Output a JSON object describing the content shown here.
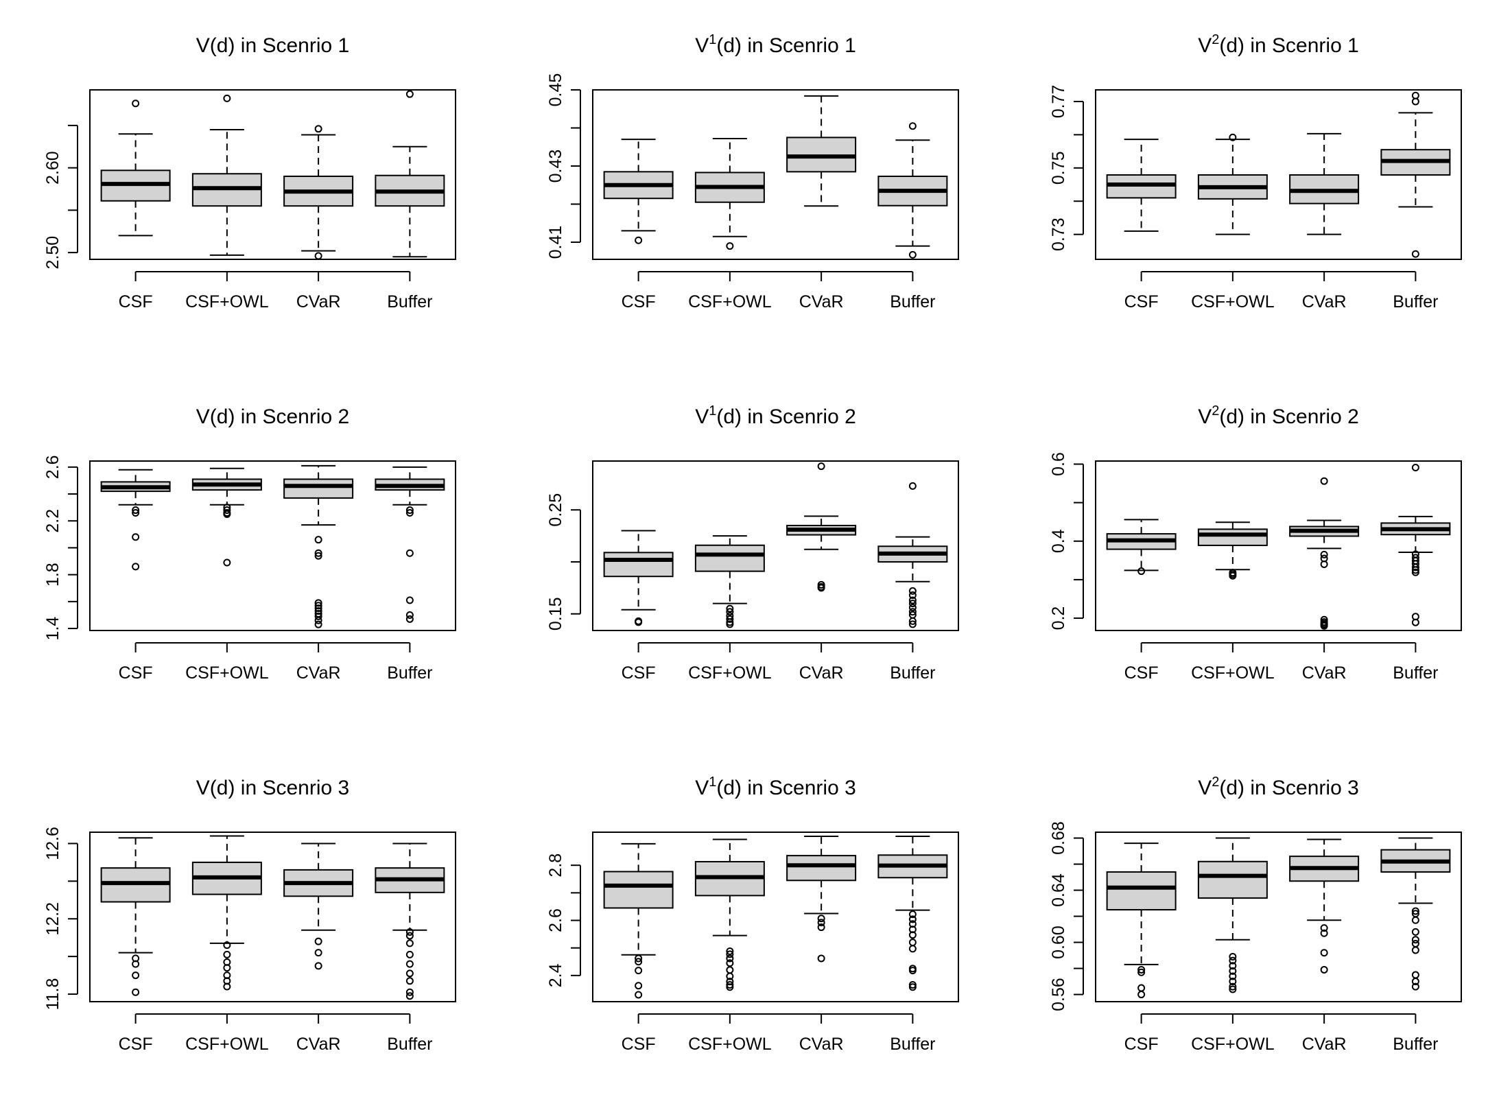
{
  "figure": {
    "name": "boxplot-grid"
  },
  "colors": {
    "box_fill": "#d3d3d3",
    "stroke": "#000000",
    "background": "#ffffff"
  },
  "chart_data": [
    {
      "type": "boxplot",
      "title": "V(d) in Scenrio 1",
      "title_main": "V",
      "title_sup": "",
      "title_rest": "(d) in Scenrio 1",
      "categories": [
        "CSF",
        "CSF+OWL",
        "CVaR",
        "Buffer"
      ],
      "ylim": [
        2.492,
        2.692
      ],
      "yticks": [
        2.5,
        2.6
      ],
      "ytick_labels": [
        "2.50",
        "2.60"
      ],
      "yminor": [
        2.55,
        2.65
      ],
      "boxes": [
        {
          "whisker_low": 2.52,
          "q1": 2.561,
          "median": 2.581,
          "q3": 2.597,
          "whisker_high": 2.64,
          "outliers": [
            2.676
          ]
        },
        {
          "whisker_low": 2.497,
          "q1": 2.555,
          "median": 2.576,
          "q3": 2.593,
          "whisker_high": 2.645,
          "outliers": [
            2.682
          ]
        },
        {
          "whisker_low": 2.502,
          "q1": 2.555,
          "median": 2.572,
          "q3": 2.59,
          "whisker_high": 2.639,
          "outliers": [
            2.646,
            2.496
          ]
        },
        {
          "whisker_low": 2.495,
          "q1": 2.555,
          "median": 2.572,
          "q3": 2.591,
          "whisker_high": 2.625,
          "outliers": [
            2.687
          ]
        }
      ]
    },
    {
      "type": "boxplot",
      "title": "V1(d) in Scenrio 1",
      "title_main": "V",
      "title_sup": "1",
      "title_rest": "(d) in Scenrio 1",
      "categories": [
        "CSF",
        "CSF+OWL",
        "CVaR",
        "Buffer"
      ],
      "ylim": [
        0.4055,
        0.45
      ],
      "yticks": [
        0.41,
        0.43,
        0.45
      ],
      "ytick_labels": [
        "0.41",
        "0.43",
        "0.45"
      ],
      "yminor": [
        0.42,
        0.44
      ],
      "boxes": [
        {
          "whisker_low": 0.413,
          "q1": 0.4215,
          "median": 0.425,
          "q3": 0.4285,
          "whisker_high": 0.437,
          "outliers": [
            0.4105
          ]
        },
        {
          "whisker_low": 0.4115,
          "q1": 0.4205,
          "median": 0.4245,
          "q3": 0.4283,
          "whisker_high": 0.4372,
          "outliers": [
            0.409
          ]
        },
        {
          "whisker_low": 0.4195,
          "q1": 0.4285,
          "median": 0.4325,
          "q3": 0.4375,
          "whisker_high": 0.4484,
          "outliers": []
        },
        {
          "whisker_low": 0.409,
          "q1": 0.4196,
          "median": 0.4235,
          "q3": 0.4273,
          "whisker_high": 0.4368,
          "outliers": [
            0.4405,
            0.4067
          ]
        }
      ]
    },
    {
      "type": "boxplot",
      "title": "V2(d) in Scenrio 1",
      "title_main": "V",
      "title_sup": "2",
      "title_rest": "(d) in Scenrio 1",
      "categories": [
        "CSF",
        "CSF+OWL",
        "CVaR",
        "Buffer"
      ],
      "ylim": [
        0.7225,
        0.7735
      ],
      "yticks": [
        0.73,
        0.75,
        0.77
      ],
      "ytick_labels": [
        "0.73",
        "0.75",
        "0.77"
      ],
      "yminor": [
        0.74,
        0.76
      ],
      "boxes": [
        {
          "whisker_low": 0.731,
          "q1": 0.741,
          "median": 0.745,
          "q3": 0.7479,
          "whisker_high": 0.7586,
          "outliers": []
        },
        {
          "whisker_low": 0.73,
          "q1": 0.7407,
          "median": 0.7442,
          "q3": 0.7479,
          "whisker_high": 0.7586,
          "outliers": [
            0.7592
          ]
        },
        {
          "whisker_low": 0.73,
          "q1": 0.7393,
          "median": 0.7431,
          "q3": 0.7479,
          "whisker_high": 0.7603,
          "outliers": []
        },
        {
          "whisker_low": 0.7383,
          "q1": 0.7479,
          "median": 0.7521,
          "q3": 0.7555,
          "whisker_high": 0.7666,
          "outliers": [
            0.7718,
            0.77,
            0.7241
          ]
        }
      ]
    },
    {
      "type": "boxplot",
      "title": "V(d) in Scenrio 2",
      "title_main": "V",
      "title_sup": "",
      "title_rest": "(d) in Scenrio 2",
      "categories": [
        "CSF",
        "CSF+OWL",
        "CVaR",
        "Buffer"
      ],
      "ylim": [
        1.385,
        2.645
      ],
      "yticks": [
        1.4,
        1.8,
        2.2,
        2.6
      ],
      "ytick_labels": [
        "1.4",
        "1.8",
        "2.2",
        "2.6"
      ],
      "yminor": [
        1.6,
        2.0,
        2.4
      ],
      "boxes": [
        {
          "whisker_low": 2.32,
          "q1": 2.42,
          "median": 2.45,
          "q3": 2.49,
          "whisker_high": 2.58,
          "outliers": [
            2.28,
            2.26,
            2.08,
            1.86
          ]
        },
        {
          "whisker_low": 2.32,
          "q1": 2.43,
          "median": 2.47,
          "q3": 2.51,
          "whisker_high": 2.59,
          "outliers": [
            2.3,
            2.28,
            2.26,
            2.25,
            1.89
          ]
        },
        {
          "whisker_low": 2.17,
          "q1": 2.37,
          "median": 2.46,
          "q3": 2.51,
          "whisker_high": 2.61,
          "outliers": [
            2.06,
            1.96,
            1.94,
            1.59,
            1.57,
            1.55,
            1.53,
            1.51,
            1.49,
            1.46,
            1.43
          ]
        },
        {
          "whisker_low": 2.32,
          "q1": 2.43,
          "median": 2.46,
          "q3": 2.51,
          "whisker_high": 2.6,
          "outliers": [
            2.28,
            2.26,
            1.96,
            1.61,
            1.5,
            1.47
          ]
        }
      ]
    },
    {
      "type": "boxplot",
      "title": "V1(d) in Scenrio 2",
      "title_main": "V",
      "title_sup": "1",
      "title_rest": "(d) in Scenrio 2",
      "categories": [
        "CSF",
        "CSF+OWL",
        "CVaR",
        "Buffer"
      ],
      "ylim": [
        0.134,
        0.297
      ],
      "yticks": [
        0.15,
        0.25
      ],
      "ytick_labels": [
        "0.15",
        "0.25"
      ],
      "yminor": [
        0.2
      ],
      "boxes": [
        {
          "whisker_low": 0.154,
          "q1": 0.186,
          "median": 0.202,
          "q3": 0.209,
          "whisker_high": 0.23,
          "outliers": [
            0.143,
            0.142
          ]
        },
        {
          "whisker_low": 0.16,
          "q1": 0.191,
          "median": 0.207,
          "q3": 0.216,
          "whisker_high": 0.225,
          "outliers": [
            0.155,
            0.152,
            0.148,
            0.145,
            0.142,
            0.14
          ]
        },
        {
          "whisker_low": 0.212,
          "q1": 0.226,
          "median": 0.231,
          "q3": 0.235,
          "whisker_high": 0.244,
          "outliers": [
            0.292,
            0.178,
            0.176,
            0.175
          ]
        },
        {
          "whisker_low": 0.181,
          "q1": 0.2,
          "median": 0.208,
          "q3": 0.215,
          "whisker_high": 0.224,
          "outliers": [
            0.273,
            0.172,
            0.168,
            0.163,
            0.16,
            0.156,
            0.152,
            0.149,
            0.143,
            0.14
          ]
        }
      ]
    },
    {
      "type": "boxplot",
      "title": "V2(d) in Scenrio 2",
      "title_main": "V",
      "title_sup": "2",
      "title_rest": "(d) in Scenrio 2",
      "categories": [
        "CSF",
        "CSF+OWL",
        "CVaR",
        "Buffer"
      ],
      "ylim": [
        0.168,
        0.608
      ],
      "yticks": [
        0.2,
        0.4,
        0.6
      ],
      "ytick_labels": [
        "0.2",
        "0.4",
        "0.6"
      ],
      "yminor": [
        0.3,
        0.5
      ],
      "boxes": [
        {
          "whisker_low": 0.324,
          "q1": 0.379,
          "median": 0.402,
          "q3": 0.419,
          "whisker_high": 0.456,
          "outliers": [
            0.322
          ]
        },
        {
          "whisker_low": 0.326,
          "q1": 0.389,
          "median": 0.417,
          "q3": 0.431,
          "whisker_high": 0.449,
          "outliers": [
            0.318,
            0.314,
            0.31
          ]
        },
        {
          "whisker_low": 0.381,
          "q1": 0.413,
          "median": 0.427,
          "q3": 0.438,
          "whisker_high": 0.454,
          "outliers": [
            0.556,
            0.365,
            0.355,
            0.34,
            0.196,
            0.19,
            0.186,
            0.183,
            0.18
          ]
        },
        {
          "whisker_low": 0.371,
          "q1": 0.417,
          "median": 0.431,
          "q3": 0.447,
          "whisker_high": 0.464,
          "outliers": [
            0.591,
            0.366,
            0.357,
            0.349,
            0.341,
            0.332,
            0.325,
            0.319,
            0.204,
            0.189
          ]
        }
      ]
    },
    {
      "type": "boxplot",
      "title": "V(d) in Scenrio 3",
      "title_main": "V",
      "title_sup": "",
      "title_rest": "(d) in Scenrio 3",
      "categories": [
        "CSF",
        "CSF+OWL",
        "CVaR",
        "Buffer"
      ],
      "ylim": [
        11.76,
        12.66
      ],
      "yticks": [
        11.8,
        12.2,
        12.6
      ],
      "ytick_labels": [
        "11.8",
        "12.2",
        "12.6"
      ],
      "yminor": [
        12.0,
        12.4
      ],
      "boxes": [
        {
          "whisker_low": 12.02,
          "q1": 12.29,
          "median": 12.39,
          "q3": 12.47,
          "whisker_high": 12.63,
          "outliers": [
            11.99,
            11.96,
            11.9,
            11.81
          ]
        },
        {
          "whisker_low": 12.07,
          "q1": 12.33,
          "median": 12.42,
          "q3": 12.5,
          "whisker_high": 12.64,
          "outliers": [
            12.06,
            12.01,
            11.97,
            11.94,
            11.9,
            11.87,
            11.84
          ]
        },
        {
          "whisker_low": 12.14,
          "q1": 12.32,
          "median": 12.39,
          "q3": 12.46,
          "whisker_high": 12.6,
          "outliers": [
            12.08,
            12.02,
            11.95
          ]
        },
        {
          "whisker_low": 12.14,
          "q1": 12.34,
          "median": 12.41,
          "q3": 12.47,
          "whisker_high": 12.6,
          "outliers": [
            12.13,
            12.11,
            12.07,
            12.01,
            11.96,
            11.91,
            11.87,
            11.81,
            11.79
          ]
        }
      ]
    },
    {
      "type": "boxplot",
      "title": "V1(d) in Scenrio 3",
      "title_main": "V",
      "title_sup": "1",
      "title_rest": "(d) in Scenrio 3",
      "categories": [
        "CSF",
        "CSF+OWL",
        "CVaR",
        "Buffer"
      ],
      "ylim": [
        2.305,
        2.92
      ],
      "yticks": [
        2.4,
        2.6,
        2.8
      ],
      "ytick_labels": [
        "2.4",
        "2.6",
        "2.8"
      ],
      "yminor": [
        2.5,
        2.7
      ],
      "boxes": [
        {
          "whisker_low": 2.475,
          "q1": 2.645,
          "median": 2.726,
          "q3": 2.777,
          "whisker_high": 2.878,
          "outliers": [
            2.462,
            2.45,
            2.418,
            2.363,
            2.33
          ]
        },
        {
          "whisker_low": 2.545,
          "q1": 2.69,
          "median": 2.757,
          "q3": 2.813,
          "whisker_high": 2.894,
          "outliers": [
            2.488,
            2.477,
            2.462,
            2.445,
            2.42,
            2.397,
            2.378,
            2.366,
            2.358
          ]
        },
        {
          "whisker_low": 2.625,
          "q1": 2.745,
          "median": 2.8,
          "q3": 2.835,
          "whisker_high": 2.905,
          "outliers": [
            2.607,
            2.592,
            2.575,
            2.462
          ]
        },
        {
          "whisker_low": 2.637,
          "q1": 2.755,
          "median": 2.799,
          "q3": 2.837,
          "whisker_high": 2.905,
          "outliers": [
            2.622,
            2.604,
            2.587,
            2.567,
            2.547,
            2.52,
            2.497,
            2.425,
            2.418,
            2.366,
            2.358
          ]
        }
      ]
    },
    {
      "type": "boxplot",
      "title": "V2(d) in Scenrio 3",
      "title_main": "V",
      "title_sup": "2",
      "title_rest": "(d) in Scenrio 3",
      "categories": [
        "CSF",
        "CSF+OWL",
        "CVaR",
        "Buffer"
      ],
      "ylim": [
        0.5545,
        0.6845
      ],
      "yticks": [
        0.56,
        0.6,
        0.64,
        0.68
      ],
      "ytick_labels": [
        "0.56",
        "0.60",
        "0.64",
        "0.68"
      ],
      "yminor": [
        0.58,
        0.62,
        0.66
      ],
      "boxes": [
        {
          "whisker_low": 0.583,
          "q1": 0.625,
          "median": 0.642,
          "q3": 0.654,
          "whisker_high": 0.676,
          "outliers": [
            0.579,
            0.577,
            0.565,
            0.56
          ]
        },
        {
          "whisker_low": 0.602,
          "q1": 0.634,
          "median": 0.651,
          "q3": 0.662,
          "whisker_high": 0.68,
          "outliers": [
            0.589,
            0.586,
            0.582,
            0.578,
            0.574,
            0.57,
            0.566,
            0.564
          ]
        },
        {
          "whisker_low": 0.617,
          "q1": 0.647,
          "median": 0.657,
          "q3": 0.666,
          "whisker_high": 0.679,
          "outliers": [
            0.611,
            0.607,
            0.592,
            0.579
          ]
        },
        {
          "whisker_low": 0.63,
          "q1": 0.654,
          "median": 0.662,
          "q3": 0.671,
          "whisker_high": 0.68,
          "outliers": [
            0.624,
            0.622,
            0.617,
            0.608,
            0.602,
            0.599,
            0.594,
            0.575,
            0.57,
            0.566
          ]
        }
      ]
    }
  ]
}
